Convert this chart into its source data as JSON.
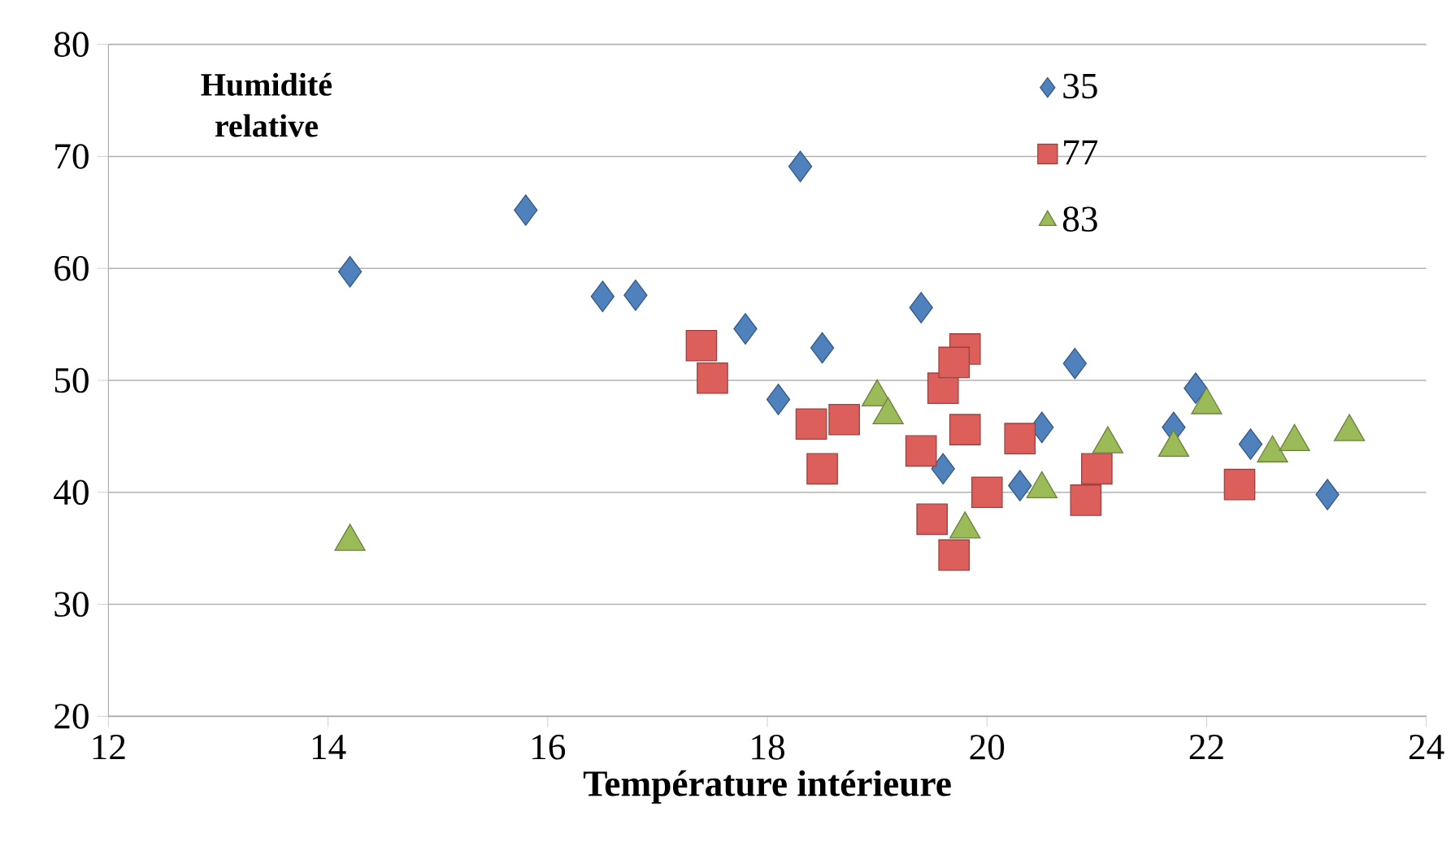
{
  "chart_data": {
    "type": "scatter",
    "xlabel": "Température intérieure",
    "ylabel": "Humidité relative",
    "xlim": [
      12,
      24
    ],
    "xticks": [
      12,
      14,
      16,
      18,
      20,
      22,
      24
    ],
    "ylim": [
      20,
      80
    ],
    "yticks": [
      20,
      30,
      40,
      50,
      60,
      70,
      80
    ],
    "grid": "y",
    "legend": "top right",
    "series": [
      {
        "name": "35",
        "color": "#4f81bd",
        "marker": "diamond",
        "x": [
          14.2,
          15.8,
          16.5,
          16.8,
          17.8,
          18.1,
          18.3,
          18.5,
          19.4,
          19.6,
          20.3,
          20.5,
          20.8,
          21.7,
          21.9,
          22.4,
          23.1
        ],
        "values": [
          59.7,
          65.2,
          57.5,
          57.6,
          54.6,
          48.3,
          69.1,
          52.9,
          56.5,
          42.1,
          40.6,
          45.8,
          51.5,
          45.8,
          49.3,
          44.3,
          39.8
        ]
      },
      {
        "name": "77",
        "color": "#dd5f5c",
        "marker": "square",
        "x": [
          17.4,
          17.5,
          18.4,
          18.5,
          18.7,
          19.4,
          19.5,
          19.6,
          19.7,
          19.8,
          19.7,
          19.8,
          20.0,
          20.3,
          21.0,
          20.9,
          22.3
        ],
        "values": [
          53.1,
          50.2,
          46.1,
          42.1,
          46.5,
          43.7,
          37.6,
          49.3,
          34.4,
          52.8,
          51.6,
          45.6,
          40.0,
          44.8,
          42.1,
          39.3,
          40.7
        ]
      },
      {
        "name": "83",
        "color": "#9bbb59",
        "marker": "triangle",
        "x": [
          14.2,
          19.0,
          19.1,
          19.8,
          20.5,
          21.1,
          21.7,
          22.0,
          22.6,
          22.8,
          23.3
        ],
        "values": [
          35.6,
          48.5,
          46.9,
          36.7,
          40.3,
          44.3,
          44.0,
          47.8,
          43.5,
          44.5,
          45.4
        ]
      }
    ]
  }
}
